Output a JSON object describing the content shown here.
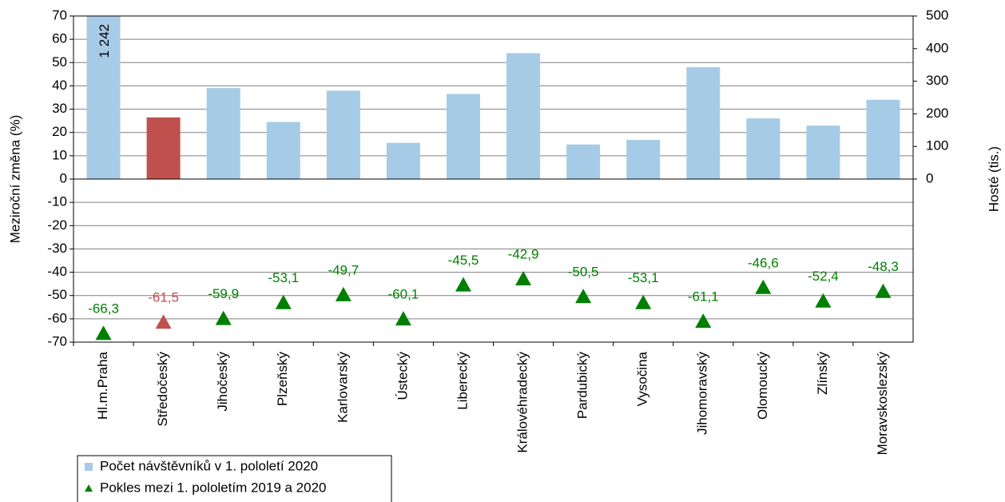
{
  "chart_data": {
    "type": "combo",
    "ylabel": "Meziroční změna (%)",
    "y2label": "Hosté (tis.)",
    "categories": [
      "Hl.m.Praha",
      "Středočeský",
      "Jihočeský",
      "Plzeňský",
      "Karlovarský",
      "Ústecký",
      "Liberecký",
      "Královéhradecký",
      "Pardubický",
      "Vysočina",
      "Jihomoravský",
      "Olomoucký",
      "Zlínský",
      "Moravskoslezský"
    ],
    "ylim": [
      -70,
      70
    ],
    "yticks": [
      -70,
      -60,
      -50,
      -40,
      -30,
      -20,
      -10,
      0,
      10,
      20,
      30,
      40,
      50,
      60,
      70
    ],
    "y2lim": [
      -500,
      500
    ],
    "y2ticks": [
      0,
      100,
      200,
      300,
      400,
      500
    ],
    "grid": true,
    "legend": "bottom-left",
    "series": [
      {
        "name": "Počet návštěvníků v 1. pololetí 2020",
        "type": "bar",
        "axis": "y2",
        "color": "#a6cbe6",
        "colors": [
          "#a6cbe6",
          "#c0504d",
          "#a6cbe6",
          "#a6cbe6",
          "#a6cbe6",
          "#a6cbe6",
          "#a6cbe6",
          "#a6cbe6",
          "#a6cbe6",
          "#a6cbe6",
          "#a6cbe6",
          "#a6cbe6",
          "#a6cbe6",
          "#a6cbe6"
        ],
        "values": [
          1242,
          189,
          279,
          175,
          271,
          111,
          261,
          386,
          106,
          120,
          343,
          186,
          164,
          243
        ],
        "value_labels": [
          "1 242",
          null,
          null,
          null,
          null,
          null,
          null,
          null,
          null,
          null,
          null,
          null,
          null,
          null
        ]
      },
      {
        "name": "Pokles mezi 1. pololetím 2019 a 2020",
        "type": "scatter",
        "marker": "triangle",
        "color": "#008000",
        "colors": [
          "#008000",
          "#c0504d",
          "#008000",
          "#008000",
          "#008000",
          "#008000",
          "#008000",
          "#008000",
          "#008000",
          "#008000",
          "#008000",
          "#008000",
          "#008000",
          "#008000"
        ],
        "values": [
          -66.3,
          -61.5,
          -59.9,
          -53.1,
          -49.7,
          -60.1,
          -45.5,
          -42.9,
          -50.5,
          -53.1,
          -61.1,
          -46.6,
          -52.4,
          -48.3
        ],
        "value_labels": [
          "-66,3",
          "-61,5",
          "-59,9",
          "-53,1",
          "-49,7",
          "-60,1",
          "-45,5",
          "-42,9",
          "-50,5",
          "-53,1",
          "-61,1",
          "-46,6",
          "-52,4",
          "-48,3"
        ]
      }
    ]
  }
}
